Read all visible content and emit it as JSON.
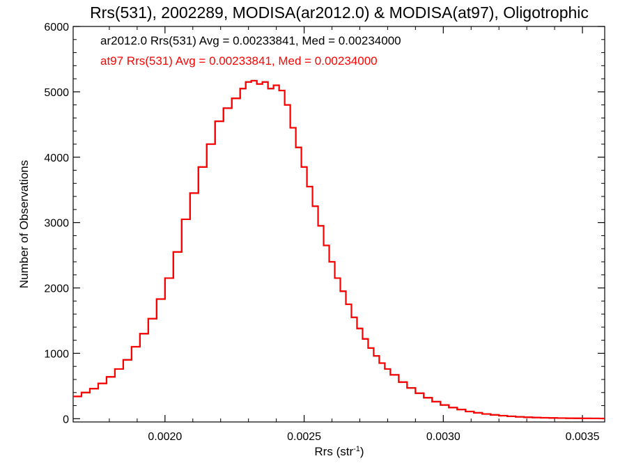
{
  "chart_data": {
    "type": "line",
    "title": "Rrs(531), 2002289, MODISA(ar2012.0) & MODISA(at97), Oligotrophic",
    "xlabel": "Rrs (str",
    "xlabel_sup": "-1",
    "xlabel_close": ")",
    "ylabel": "Number of Observations",
    "xlim": [
      0.00167,
      0.00358
    ],
    "ylim": [
      -50,
      6000
    ],
    "xticks": [
      0.002,
      0.0025,
      0.003,
      0.0035
    ],
    "xtick_labels": [
      "0.0020",
      "0.0025",
      "0.0030",
      "0.0035"
    ],
    "yticks": [
      0,
      1000,
      2000,
      3000,
      4000,
      5000,
      6000
    ],
    "ytick_labels": [
      "0",
      "1000",
      "2000",
      "3000",
      "4000",
      "5000",
      "6000"
    ],
    "grid": false,
    "annotations": [
      {
        "text": "ar2012.0 Rrs(531) Avg = 0.00233841, Med = 0.00234000",
        "color": "#000000"
      },
      {
        "text": "at97 Rrs(531) Avg = 0.00233841, Med = 0.00234000",
        "color": "#ff0000"
      }
    ],
    "series": [
      {
        "color": "#000000",
        "style": "step",
        "x": [
          0.00167,
          0.0017,
          0.00173,
          0.00176,
          0.00179,
          0.00182,
          0.00185,
          0.00188,
          0.00191,
          0.00194,
          0.00197,
          0.002,
          0.00203,
          0.00206,
          0.00209,
          0.00212,
          0.00215,
          0.00218,
          0.00221,
          0.00224,
          0.00227,
          0.00229,
          0.00231,
          0.00233,
          0.00235,
          0.00237,
          0.00239,
          0.00241,
          0.00243,
          0.00245,
          0.00247,
          0.00249,
          0.00251,
          0.00253,
          0.00255,
          0.00257,
          0.00259,
          0.00261,
          0.00263,
          0.00265,
          0.00267,
          0.00269,
          0.00271,
          0.00273,
          0.00275,
          0.00277,
          0.00279,
          0.00281,
          0.00284,
          0.00287,
          0.0029,
          0.00293,
          0.00296,
          0.00299,
          0.00302,
          0.00305,
          0.00308,
          0.00311,
          0.00314,
          0.00317,
          0.0032,
          0.00323,
          0.00326,
          0.00329,
          0.00332,
          0.00335,
          0.00338,
          0.00341,
          0.00344,
          0.00347,
          0.0035,
          0.00353,
          0.00356,
          0.00358
        ],
        "y": [
          340,
          400,
          460,
          540,
          640,
          760,
          900,
          1100,
          1300,
          1530,
          1830,
          2150,
          2550,
          3050,
          3450,
          3850,
          4200,
          4550,
          4750,
          4900,
          5050,
          5150,
          5170,
          5120,
          5150,
          5050,
          5100,
          5020,
          4800,
          4450,
          4150,
          3850,
          3550,
          3250,
          2950,
          2650,
          2400,
          2150,
          1950,
          1750,
          1550,
          1380,
          1220,
          1080,
          960,
          850,
          760,
          670,
          560,
          470,
          390,
          320,
          260,
          210,
          170,
          140,
          110,
          90,
          72,
          58,
          46,
          36,
          28,
          22,
          18,
          14,
          11,
          9,
          7,
          6,
          5,
          4,
          3,
          3
        ]
      },
      {
        "color": "#ff0000",
        "style": "step",
        "x": [
          0.00167,
          0.0017,
          0.00173,
          0.00176,
          0.00179,
          0.00182,
          0.00185,
          0.00188,
          0.00191,
          0.00194,
          0.00197,
          0.002,
          0.00203,
          0.00206,
          0.00209,
          0.00212,
          0.00215,
          0.00218,
          0.00221,
          0.00224,
          0.00227,
          0.00229,
          0.00231,
          0.00233,
          0.00235,
          0.00237,
          0.00239,
          0.00241,
          0.00243,
          0.00245,
          0.00247,
          0.00249,
          0.00251,
          0.00253,
          0.00255,
          0.00257,
          0.00259,
          0.00261,
          0.00263,
          0.00265,
          0.00267,
          0.00269,
          0.00271,
          0.00273,
          0.00275,
          0.00277,
          0.00279,
          0.00281,
          0.00284,
          0.00287,
          0.0029,
          0.00293,
          0.00296,
          0.00299,
          0.00302,
          0.00305,
          0.00308,
          0.00311,
          0.00314,
          0.00317,
          0.0032,
          0.00323,
          0.00326,
          0.00329,
          0.00332,
          0.00335,
          0.00338,
          0.00341,
          0.00344,
          0.00347,
          0.0035,
          0.00353,
          0.00356,
          0.00358
        ],
        "y": [
          340,
          400,
          460,
          540,
          640,
          760,
          900,
          1100,
          1300,
          1530,
          1830,
          2150,
          2550,
          3050,
          3450,
          3850,
          4200,
          4550,
          4750,
          4900,
          5050,
          5150,
          5170,
          5120,
          5150,
          5050,
          5100,
          5020,
          4800,
          4450,
          4150,
          3850,
          3550,
          3250,
          2950,
          2650,
          2400,
          2150,
          1950,
          1750,
          1550,
          1380,
          1220,
          1080,
          960,
          850,
          760,
          670,
          560,
          470,
          390,
          320,
          260,
          210,
          170,
          140,
          110,
          90,
          72,
          58,
          46,
          36,
          28,
          22,
          18,
          14,
          11,
          9,
          7,
          6,
          5,
          4,
          3,
          3
        ]
      }
    ]
  }
}
